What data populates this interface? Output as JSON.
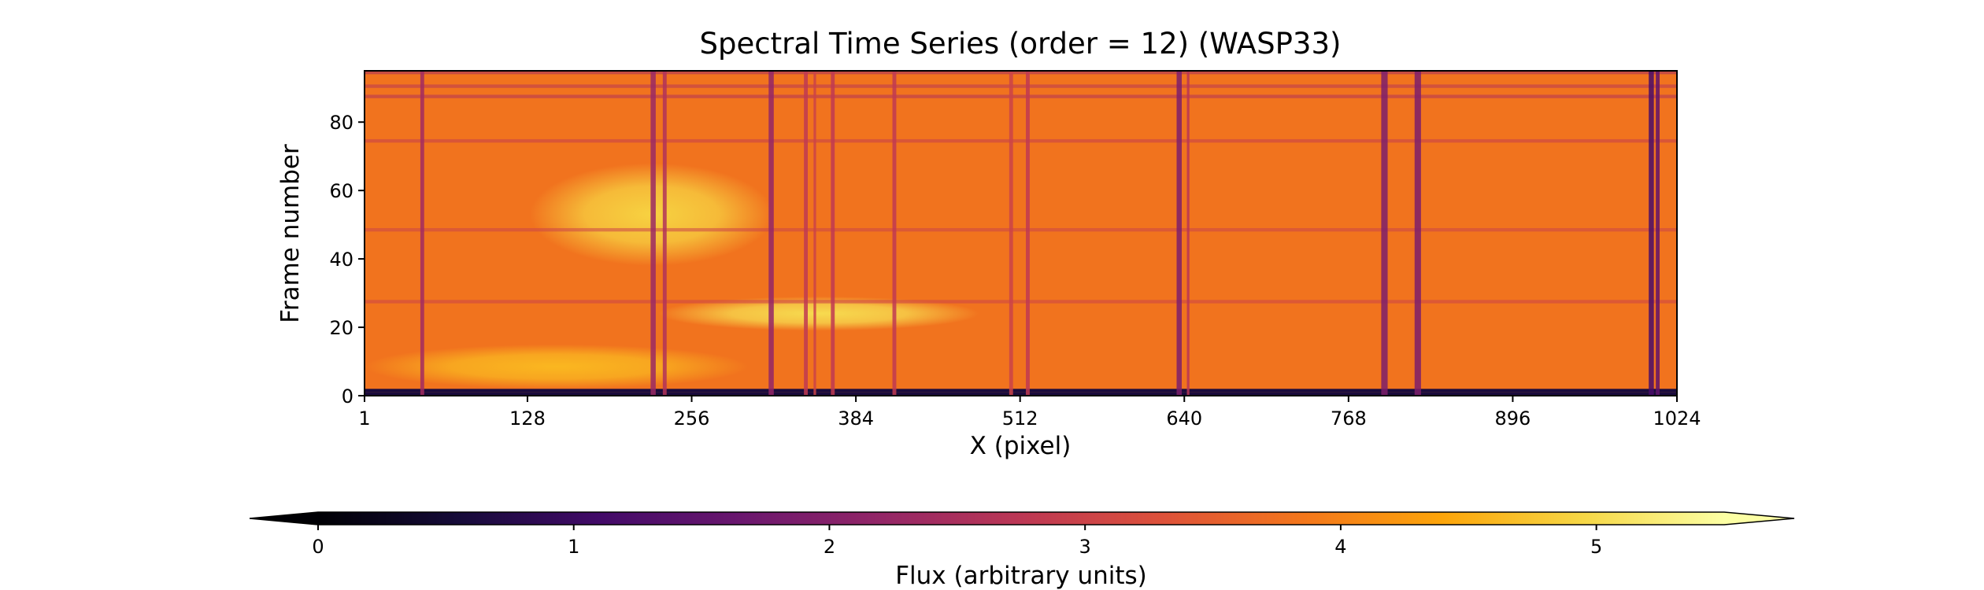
{
  "chart_data": {
    "type": "heatmap",
    "title": "Spectral Time Series (order = 12) (WASP33)",
    "xlabel": "X (pixel)",
    "ylabel": "Frame number",
    "xlim": [
      1,
      1024
    ],
    "ylim": [
      0,
      95
    ],
    "xticks": [
      1,
      128,
      256,
      384,
      512,
      640,
      768,
      896,
      1024
    ],
    "yticks": [
      0,
      20,
      40,
      60,
      80
    ],
    "colormap": "inferno",
    "colorbar": {
      "label": "Flux (arbitrary units)",
      "range": [
        0,
        5.5
      ],
      "ticks": [
        0,
        1,
        2,
        3,
        4,
        5
      ],
      "extend": "both",
      "orientation": "horizontal",
      "placement": "bottom"
    },
    "baseline_flux": 3.8,
    "absorption_lines": [
      {
        "x": 46,
        "width": 3,
        "flux": 2.4
      },
      {
        "x": 226,
        "width": 4,
        "flux": 2.3
      },
      {
        "x": 235,
        "width": 3,
        "flux": 2.6
      },
      {
        "x": 318,
        "width": 4,
        "flux": 2.2
      },
      {
        "x": 345,
        "width": 3,
        "flux": 2.8
      },
      {
        "x": 352,
        "width": 2,
        "flux": 3.0
      },
      {
        "x": 366,
        "width": 3,
        "flux": 2.8
      },
      {
        "x": 414,
        "width": 3,
        "flux": 2.8
      },
      {
        "x": 505,
        "width": 3,
        "flux": 3.0
      },
      {
        "x": 518,
        "width": 3,
        "flux": 2.8
      },
      {
        "x": 636,
        "width": 4,
        "flux": 1.9
      },
      {
        "x": 643,
        "width": 2,
        "flux": 2.7
      },
      {
        "x": 796,
        "width": 5,
        "flux": 1.9
      },
      {
        "x": 822,
        "width": 5,
        "flux": 1.9
      },
      {
        "x": 1004,
        "width": 4,
        "flux": 1.2
      },
      {
        "x": 1009,
        "width": 3,
        "flux": 1.5
      }
    ],
    "bright_regions": [
      {
        "x_range": [
          130,
          320
        ],
        "frame_range": [
          38,
          68
        ],
        "flux": 4.9
      },
      {
        "x_range": [
          230,
          480
        ],
        "frame_range": [
          19,
          29
        ],
        "flux": 5.0
      },
      {
        "x_range": [
          1,
          300
        ],
        "frame_range": [
          2,
          15
        ],
        "flux": 4.6
      }
    ],
    "low_rows": [
      {
        "frame": 0,
        "flux": 0.6
      },
      {
        "frame": 1,
        "flux": 0.6
      },
      {
        "frame": 27,
        "flux": 3.0
      },
      {
        "frame": 48,
        "flux": 3.0
      },
      {
        "frame": 74,
        "flux": 2.9
      },
      {
        "frame": 87,
        "flux": 2.6
      },
      {
        "frame": 90,
        "flux": 2.7
      },
      {
        "frame": 94,
        "flux": 2.4
      }
    ]
  }
}
